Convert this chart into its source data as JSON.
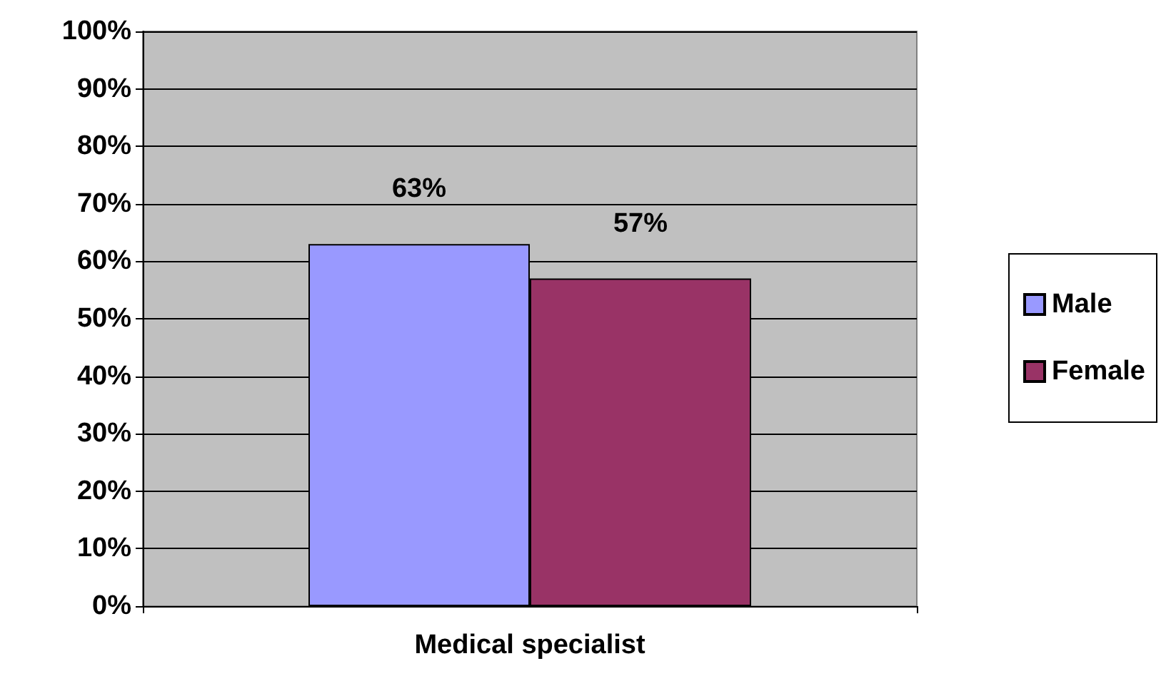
{
  "chart_data": {
    "type": "bar",
    "categories": [
      "Medical specialist"
    ],
    "series": [
      {
        "name": "Male",
        "color": "#9999ff",
        "values": [
          63
        ],
        "value_labels": [
          "63%"
        ]
      },
      {
        "name": "Female",
        "color": "#993366",
        "values": [
          57
        ],
        "value_labels": [
          "57%"
        ]
      }
    ],
    "ylim": [
      0,
      100
    ],
    "yticks": [
      {
        "value": 0,
        "label": "0%"
      },
      {
        "value": 10,
        "label": "10%"
      },
      {
        "value": 20,
        "label": "20%"
      },
      {
        "value": 30,
        "label": "30%"
      },
      {
        "value": 40,
        "label": "40%"
      },
      {
        "value": 50,
        "label": "50%"
      },
      {
        "value": 60,
        "label": "60%"
      },
      {
        "value": 70,
        "label": "70%"
      },
      {
        "value": 80,
        "label": "80%"
      },
      {
        "value": 90,
        "label": "90%"
      },
      {
        "value": 100,
        "label": "100%"
      }
    ],
    "grid": "y",
    "legend": "right"
  }
}
